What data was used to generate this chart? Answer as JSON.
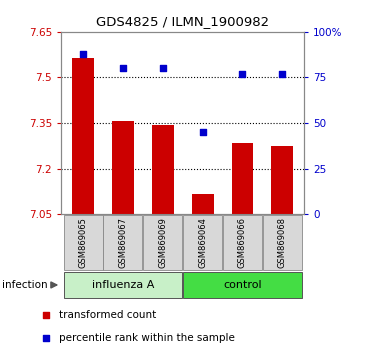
{
  "title": "GDS4825 / ILMN_1900982",
  "categories": [
    "GSM869065",
    "GSM869067",
    "GSM869069",
    "GSM869064",
    "GSM869066",
    "GSM869068"
  ],
  "bar_values": [
    7.565,
    7.355,
    7.345,
    7.115,
    7.285,
    7.275
  ],
  "bar_baseline": 7.05,
  "scatter_values": [
    88,
    80,
    80,
    45,
    77,
    77
  ],
  "bar_color": "#cc0000",
  "scatter_color": "#0000cc",
  "ylim_left": [
    7.05,
    7.65
  ],
  "ylim_right": [
    0,
    100
  ],
  "yticks_left": [
    7.05,
    7.2,
    7.35,
    7.5,
    7.65
  ],
  "ytick_labels_left": [
    "7.05",
    "7.2",
    "7.35",
    "7.5",
    "7.65"
  ],
  "yticks_right": [
    0,
    25,
    50,
    75,
    100
  ],
  "ytick_labels_right": [
    "0",
    "25",
    "50",
    "75",
    "100%"
  ],
  "legend_items": [
    "transformed count",
    "percentile rank within the sample"
  ],
  "infection_label": "infection",
  "cat_bg_color": "#d8d8d8",
  "plot_bg": "#ffffff",
  "influenza_color": "#c8f0c8",
  "control_color": "#44dd44",
  "grid_color": "black",
  "spine_color": "#888888"
}
